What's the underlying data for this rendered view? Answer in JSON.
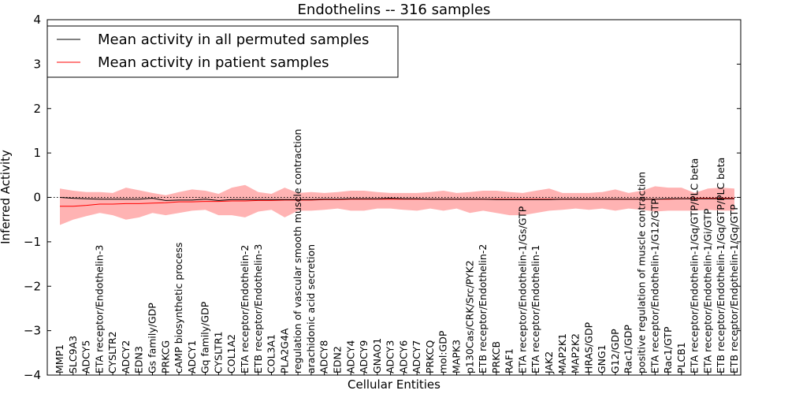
{
  "chart_data": {
    "type": "line",
    "title": "Endothelins -- 316 samples",
    "xlabel": "Cellular Entities",
    "ylabel": "Inferred Activity",
    "ylim": [
      -4,
      4
    ],
    "yticks": [
      "4",
      "3",
      "2",
      "1",
      "0",
      "−1",
      "−2",
      "−3",
      "−4"
    ],
    "reference_line": 0,
    "legend": {
      "placement": "top-left",
      "entries": [
        {
          "label": "Mean activity in all permuted samples",
          "color": "#000000"
        },
        {
          "label": "Mean activity in patient samples",
          "color": "#ff0000"
        }
      ]
    },
    "categories": [
      "MMP1",
      "SLC9A3",
      "ADCY5",
      "ETA receptor/Endothelin-3",
      "CYSLTR2",
      "ADCY2",
      "EDN3",
      "Gs family/GDP",
      "PRKCG",
      "cAMP biosynthetic process",
      "ADCY1",
      "Gq family/GDP",
      "CYSLTR1",
      "COL1A2",
      "ETA receptor/Endothelin-2",
      "ETB receptor/Endothelin-3",
      "COL3A1",
      "PLA2G4A",
      "regulation of vascular smooth muscle contraction",
      "arachidonic acid secretion",
      "ADCY8",
      "EDN2",
      "ADCY4",
      "ADCY9",
      "GNAO1",
      "ADCY3",
      "ADCY6",
      "ADCY7",
      "PRKCQ",
      "mol:GDP",
      "MAPK3",
      "p130Cas/CRK/Src/PYK2",
      "ETB receptor/Endothelin-2",
      "PRKCB",
      "RAF1",
      "ETA receptor/Endothelin-1/Gs/GTP",
      "ETA receptor/Endothelin-1",
      "JAK2",
      "MAP2K1",
      "MAP2K2",
      "HRAS/GDP",
      "GNG1",
      "G12/GDP",
      "Rac1/GDP",
      "positive regulation of muscle contraction",
      "ETA receptor/Endothelin-1/G12/GTP",
      "Rac1/GTP",
      "PLCB1",
      "ETA receptor/Endothelin-1/Gq/GTP/PLC beta",
      "ETA receptor/Endothelin-1/Gi/GTP",
      "ETB receptor/Endothelin-1/Gq/GTP/PLC beta",
      "ETB receptor/Endothelin-1/Gq/GTP"
    ],
    "series": [
      {
        "name": "Mean activity in all permuted samples",
        "color": "#000000",
        "values": [
          0.0,
          -0.02,
          -0.03,
          -0.04,
          -0.04,
          -0.04,
          -0.04,
          -0.02,
          -0.07,
          -0.06,
          -0.06,
          -0.04,
          -0.07,
          -0.05,
          -0.05,
          -0.05,
          -0.05,
          -0.05,
          -0.05,
          -0.05,
          -0.04,
          -0.04,
          -0.03,
          -0.03,
          -0.03,
          -0.02,
          -0.03,
          -0.03,
          -0.04,
          -0.04,
          -0.04,
          -0.04,
          -0.04,
          -0.05,
          -0.05,
          -0.05,
          -0.05,
          -0.05,
          -0.04,
          -0.04,
          -0.04,
          -0.04,
          -0.04,
          -0.04,
          -0.04,
          -0.04,
          -0.03,
          -0.03,
          -0.03,
          -0.03,
          -0.03,
          -0.03
        ]
      },
      {
        "name": "Mean activity in patient samples",
        "color": "#ff0000",
        "values": [
          -0.2,
          -0.2,
          -0.18,
          -0.15,
          -0.15,
          -0.14,
          -0.14,
          -0.13,
          -0.12,
          -0.1,
          -0.1,
          -0.09,
          -0.09,
          -0.08,
          -0.08,
          -0.07,
          -0.07,
          -0.06,
          -0.06,
          -0.06,
          -0.05,
          -0.05,
          -0.04,
          -0.04,
          -0.04,
          -0.04,
          -0.04,
          -0.04,
          -0.04,
          -0.04,
          -0.04,
          -0.04,
          -0.04,
          -0.04,
          -0.04,
          -0.04,
          -0.04,
          -0.04,
          -0.04,
          -0.04,
          -0.04,
          -0.04,
          -0.04,
          -0.04,
          -0.04,
          -0.04,
          -0.04,
          -0.03,
          -0.02,
          -0.02,
          -0.02,
          -0.02
        ]
      }
    ],
    "band": {
      "name": "patient sample spread",
      "color": "#ff9999",
      "upper": [
        0.2,
        0.15,
        0.12,
        0.12,
        0.1,
        0.22,
        0.16,
        0.1,
        0.05,
        0.12,
        0.18,
        0.15,
        0.08,
        0.22,
        0.28,
        0.12,
        0.08,
        0.22,
        0.1,
        0.12,
        0.1,
        0.12,
        0.15,
        0.15,
        0.12,
        0.1,
        0.1,
        0.1,
        0.12,
        0.15,
        0.1,
        0.12,
        0.15,
        0.15,
        0.12,
        0.1,
        0.15,
        0.2,
        0.1,
        0.1,
        0.1,
        0.12,
        0.18,
        0.1,
        0.15,
        0.25,
        0.22,
        0.22,
        0.1,
        0.2,
        0.22,
        0.2
      ],
      "lower": [
        -0.62,
        -0.5,
        -0.42,
        -0.35,
        -0.4,
        -0.5,
        -0.45,
        -0.35,
        -0.4,
        -0.35,
        -0.3,
        -0.28,
        -0.4,
        -0.4,
        -0.45,
        -0.32,
        -0.28,
        -0.45,
        -0.3,
        -0.3,
        -0.28,
        -0.25,
        -0.3,
        -0.3,
        -0.25,
        -0.25,
        -0.28,
        -0.3,
        -0.25,
        -0.3,
        -0.25,
        -0.35,
        -0.3,
        -0.35,
        -0.4,
        -0.4,
        -0.35,
        -0.3,
        -0.28,
        -0.25,
        -0.28,
        -0.25,
        -0.3,
        -0.25,
        -0.28,
        -0.32,
        -0.3,
        -0.3,
        -0.3,
        -0.28,
        -0.3,
        -0.3
      ]
    }
  }
}
